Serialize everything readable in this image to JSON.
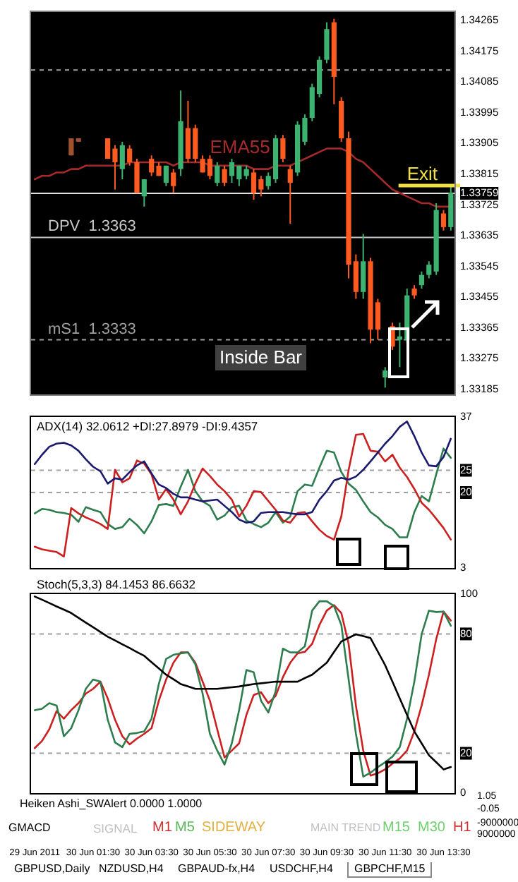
{
  "chart_data": [
    {
      "type": "candlestick",
      "ohlc": [
        null,
        null,
        null,
        null,
        null,
        [
          1.3392,
          1.3392,
          1.3387,
          1.3387
        ],
        [
          1.3392,
          1.3392,
          1.3391,
          1.3391
        ],
        null,
        null,
        null,
        [
          1.3392,
          1.3392,
          1.3386,
          1.3386
        ],
        [
          1.3389,
          1.339,
          1.3377,
          1.3385
        ],
        [
          1.3383,
          1.3391,
          1.338,
          1.339
        ],
        [
          1.3389,
          1.339,
          1.3384,
          1.3385
        ],
        [
          1.3385,
          1.3386,
          1.3376,
          1.3376
        ],
        [
          1.3375,
          1.338,
          1.3372,
          1.338
        ],
        [
          1.3386,
          1.3387,
          1.3381,
          1.3382
        ],
        [
          1.3384,
          1.3385,
          1.3381,
          1.3381
        ],
        [
          1.3379,
          1.3384,
          1.3378,
          1.3384
        ],
        [
          1.3382,
          1.3383,
          1.3376,
          1.3378
        ],
        [
          1.3383,
          1.3406,
          1.3381,
          1.3397
        ],
        [
          1.3395,
          1.3403,
          1.3385,
          1.3386
        ],
        [
          1.3395,
          1.3396,
          1.3385,
          1.3386
        ],
        [
          1.3386,
          1.3387,
          1.3382,
          1.3382
        ],
        [
          1.3386,
          1.3387,
          1.338,
          1.3381
        ],
        [
          1.3379,
          1.3385,
          1.3378,
          1.3384
        ],
        [
          1.3383,
          1.3384,
          1.3378,
          1.3379
        ],
        [
          1.3381,
          1.3386,
          1.3379,
          1.3385
        ],
        [
          1.338,
          1.3384,
          1.3378,
          1.3384
        ],
        [
          1.3381,
          1.3384,
          1.338,
          1.3383
        ],
        [
          1.3382,
          1.3383,
          1.3374,
          1.3376
        ],
        [
          1.338,
          1.3381,
          1.3375,
          1.3377
        ],
        [
          1.3378,
          1.3382,
          1.3377,
          1.3381
        ],
        [
          1.338,
          1.3393,
          1.3379,
          1.3392
        ],
        [
          1.3392,
          1.3393,
          1.3385,
          1.3386
        ],
        [
          1.3383,
          1.3384,
          1.3367,
          1.3379
        ],
        [
          1.3382,
          1.3397,
          1.3381,
          1.3396
        ],
        [
          1.3391,
          1.3399,
          1.339,
          1.3398
        ],
        [
          1.3398,
          1.3408,
          1.3397,
          1.3407
        ],
        [
          1.3405,
          1.3416,
          1.3404,
          1.3415
        ],
        [
          1.3415,
          1.3426,
          1.3414,
          1.3424
        ],
        [
          1.3426,
          1.3427,
          1.3402,
          1.341
        ],
        [
          1.3403,
          1.3404,
          1.3391,
          1.3392
        ],
        [
          1.3392,
          1.3394,
          1.3351,
          1.3355
        ],
        [
          1.3356,
          1.3358,
          1.3345,
          1.3347
        ],
        [
          1.3347,
          1.3364,
          1.3345,
          1.3356
        ],
        [
          1.3356,
          1.3357,
          1.3332,
          1.3336
        ],
        [
          1.3344,
          1.3345,
          1.3333,
          1.3336
        ],
        [
          1.3322,
          1.3325,
          1.3319,
          1.3324
        ],
        [
          1.3337,
          1.3338,
          1.333,
          1.3331
        ],
        [
          1.3333,
          1.3338,
          1.3325,
          1.3334
        ],
        [
          1.3333,
          1.3348,
          1.3332,
          1.3346
        ],
        [
          1.3348,
          1.3349,
          1.3345,
          1.3346
        ],
        [
          1.3349,
          1.3353,
          1.3348,
          1.3352
        ],
        [
          1.3352,
          1.3356,
          1.3351,
          1.3355
        ],
        [
          1.3353,
          1.3373,
          1.3352,
          1.3371
        ],
        [
          1.337,
          1.3371,
          1.3365,
          1.3366
        ],
        [
          1.3366,
          1.3378,
          1.3365,
          1.3376
        ]
      ],
      "colors": [
        null,
        null,
        null,
        null,
        null,
        "#a0522d",
        "#a0522d",
        null,
        null,
        null,
        "#ff5a1f",
        "#ff5a1f",
        "#3cb371",
        "#ff5a1f",
        "#ff5a1f",
        "#3cb371",
        "#ff5a1f",
        "#ff5a1f",
        "#3cb371",
        "#ff5a1f",
        "#3cb371",
        "#ff5a1f",
        "#ff5a1f",
        "#ff5a1f",
        "#ff5a1f",
        "#3cb371",
        "#ff5a1f",
        "#3cb371",
        "#3cb371",
        "#3cb371",
        "#ff5a1f",
        "#ff5a1f",
        "#3cb371",
        "#3cb371",
        "#ff5a1f",
        "#ff5a1f",
        "#3cb371",
        "#3cb371",
        "#3cb371",
        "#3cb371",
        "#3cb371",
        "#ff5a1f",
        "#ff5a1f",
        "#ff5a1f",
        "#ff5a1f",
        "#3cb371",
        "#ff5a1f",
        "#ff5a1f",
        "#3cb371",
        "#ff5a1f",
        "#3cb371",
        "#3cb371",
        "#ff5a1f",
        "#3cb371",
        "#3cb371",
        "#3cb371",
        "#ff5a1f",
        "#3cb371"
      ],
      "series": [
        {
          "type": "line",
          "name": "EMA55",
          "color": "#a52a2a",
          "values": [
            1.338,
            1.3381,
            1.3381,
            1.3382,
            1.3382,
            1.3383,
            1.3383,
            1.3384,
            1.3384,
            1.3384,
            1.3384,
            1.3384,
            1.3384,
            1.3385,
            1.3385,
            1.3385,
            1.3385,
            1.3385,
            1.3385,
            1.3384,
            1.3385,
            1.3385,
            1.3385,
            1.3385,
            1.3384,
            1.3384,
            1.3384,
            1.3384,
            1.3384,
            1.3384,
            1.3383,
            1.3383,
            1.3383,
            1.3384,
            1.3384,
            1.3384,
            1.3385,
            1.3386,
            1.3387,
            1.3388,
            1.3389,
            1.3389,
            1.3389,
            1.3388,
            1.3386,
            1.3385,
            1.3383,
            1.3381,
            1.3379,
            1.3377,
            1.3376,
            1.3375,
            1.3374,
            1.3373,
            1.3373,
            1.3372,
            1.3372,
            1.3372
          ]
        }
      ],
      "ylim": [
        1.3317,
        1.3429
      ],
      "yticks": [
        1.34265,
        1.34175,
        1.34085,
        1.33995,
        1.33905,
        1.33815,
        1.33759,
        1.33725,
        1.33635,
        1.33545,
        1.33455,
        1.33365,
        1.33275,
        1.33185
      ],
      "ref_lines": [
        {
          "axis": "y",
          "value": 1.3412,
          "color": "#a0a0a0",
          "line_style": "dashed"
        },
        {
          "axis": "y",
          "value": 1.33759,
          "color": "#e0e0e0"
        },
        {
          "axis": "y",
          "value": 1.3363,
          "label": "DPV  1.3363",
          "color": "#c8c8c8"
        },
        {
          "axis": "y",
          "value": 1.3333,
          "label": "mS1  1.3333",
          "color": "#a0a0a0",
          "line_style": "dashed"
        }
      ],
      "annotations": [
        "Exit",
        "Inside Bar"
      ],
      "tick_labels": "y"
    },
    {
      "type": "line",
      "title": "ADX(14) 32.0612 +DI:27.8979 -DI:9.4357",
      "series": [
        {
          "color": "#1a1a6e",
          "values": [
            26.4,
            28.5,
            30.3,
            31.0,
            31.2,
            30.6,
            29.4,
            27.5,
            25.8,
            24.8,
            22.0,
            23.2,
            22.9,
            24.6,
            26.1,
            27.0,
            24.3,
            21.8,
            21.0,
            19.7,
            18.9,
            18.9,
            18.4,
            18.0,
            18.2,
            18.4,
            17.0,
            15.6,
            13.9,
            13.2,
            13.5,
            15.4,
            15.6,
            15.6,
            15.6,
            15.3,
            15.1,
            15.1,
            15.6,
            18.4,
            20.3,
            22.7,
            23.3,
            22.9,
            23.6,
            25.1,
            27.0,
            29.0,
            31.0,
            32.7,
            34.8,
            36.0,
            32.7,
            29.0,
            26.1,
            25.9,
            28.0,
            32.1
          ]
        },
        {
          "color": "#cc2020",
          "values": [
            7.8,
            7.2,
            6.9,
            6.6,
            5.6,
            16.5,
            15.3,
            14.4,
            13.7,
            12.9,
            11.8,
            25.1,
            22.3,
            23.2,
            27.2,
            26.5,
            24.1,
            18.4,
            20.8,
            18.4,
            15.1,
            18.0,
            22.0,
            25.4,
            23.7,
            21.8,
            20.3,
            18.4,
            14.6,
            17.0,
            20.3,
            20.1,
            18.1,
            16.1,
            13.7,
            13.2,
            15.4,
            15.6,
            13.5,
            11.6,
            10.2,
            9.4,
            14.6,
            25.1,
            33.0,
            33.2,
            29.4,
            29.2,
            27.0,
            28.5,
            25.6,
            23.5,
            20.8,
            17.7,
            16.1,
            14.1,
            12.0,
            9.4
          ]
        },
        {
          "color": "#2e7d4f",
          "values": [
            15.3,
            16.3,
            16.1,
            15.6,
            15.4,
            15.0,
            13.4,
            16.7,
            16.1,
            15.6,
            12.9,
            11.8,
            12.2,
            14.1,
            12.7,
            10.8,
            13.5,
            17.2,
            17.4,
            17.0,
            21.3,
            25.1,
            20.3,
            18.0,
            17.0,
            13.9,
            14.8,
            16.7,
            17.0,
            13.7,
            12.9,
            12.2,
            13.2,
            15.6,
            13.2,
            14.6,
            20.3,
            21.8,
            21.5,
            25.6,
            29.4,
            29.0,
            24.6,
            22.0,
            20.6,
            18.0,
            15.6,
            14.4,
            12.7,
            11.8,
            9.9,
            9.9,
            15.6,
            19.2,
            18.0,
            24.1,
            29.9,
            27.8
          ]
        }
      ],
      "ylim": [
        3,
        37
      ],
      "yticks": [
        3,
        20,
        25,
        37
      ],
      "ref_lines": [
        {
          "axis": "y",
          "value": 25,
          "color": "#a0a0a0",
          "line_style": "dashed"
        },
        {
          "axis": "y",
          "value": 20,
          "color": "#a0a0a0",
          "line_style": "dashed"
        }
      ],
      "tick_labels": "y"
    },
    {
      "type": "line",
      "title": "Stoch(5,3,3) 84.1453 86.6632",
      "categories": [
        "29 Jun 2011",
        null,
        null,
        null,
        null,
        null,
        null,
        null,
        "30 Jun 01:30",
        null,
        null,
        null,
        null,
        null,
        null,
        null,
        "30 Jun 03:30",
        null,
        null,
        null,
        null,
        null,
        null,
        null,
        "30 Jun 05:30",
        null,
        null,
        null,
        null,
        null,
        null,
        null,
        "30 Jun 07:30",
        null,
        null,
        null,
        null,
        null,
        null,
        null,
        "30 Jun 09:30",
        null,
        null,
        null,
        null,
        null,
        null,
        null,
        "30 Jun 11:30",
        null,
        null,
        null,
        null,
        null,
        null,
        null,
        "30 Jun 13:30",
        null
      ],
      "series": [
        {
          "color": "#000000",
          "values": [
            98.8,
            97.2,
            95.5,
            93.8,
            92.2,
            90.5,
            88.1,
            85.7,
            83.4,
            81.0,
            78.6,
            76.7,
            74.8,
            72.9,
            70.9,
            69.0,
            65.8,
            62.7,
            59.5,
            57.2,
            54.8,
            53.6,
            52.4,
            52.4,
            52.4,
            52.4,
            52.8,
            53.2,
            53.6,
            54.2,
            54.8,
            55.2,
            55.6,
            56.0,
            56.0,
            56.0,
            56.0,
            57.8,
            59.5,
            62.5,
            65.5,
            70.9,
            76.2,
            78.0,
            79.8,
            78.9,
            77.9,
            71.1,
            64.3,
            56.0,
            47.6,
            39.3,
            31.0,
            25.0,
            19.0,
            15.5,
            11.9,
            13.1
          ]
        },
        {
          "color": "#2e7d4f",
          "values": [
            41.7,
            42.4,
            45.2,
            44.0,
            28.6,
            32.6,
            41.7,
            52.4,
            57.1,
            56.0,
            36.9,
            25.5,
            23.1,
            29.8,
            30.2,
            31.0,
            37.4,
            54.8,
            67.4,
            69.5,
            70.2,
            70.7,
            64.8,
            50.0,
            29.8,
            21.4,
            14.3,
            25.0,
            41.7,
            61.9,
            60.7,
            46.4,
            40.5,
            51.2,
            72.6,
            70.7,
            70.7,
            73.8,
            91.7,
            96.4,
            96.4,
            94.0,
            84.5,
            57.1,
            29.8,
            8.3,
            10.2,
            13.1,
            15.5,
            18.3,
            23.1,
            37.4,
            56.0,
            79.8,
            91.7,
            91.0,
            91.2,
            84.1
          ]
        },
        {
          "color": "#cc2020",
          "values": [
            22.6,
            26.2,
            32.1,
            41.2,
            37.4,
            41.7,
            45.2,
            50.0,
            52.4,
            56.0,
            47.6,
            36.9,
            28.6,
            24.5,
            27.4,
            29.8,
            32.6,
            46.4,
            57.1,
            65.5,
            70.7,
            70.7,
            65.5,
            56.0,
            46.4,
            32.1,
            17.9,
            21.4,
            25.0,
            39.3,
            49.3,
            50.7,
            45.2,
            48.8,
            58.3,
            65.5,
            70.2,
            71.0,
            75.0,
            84.5,
            91.7,
            94.5,
            90.5,
            75.0,
            44.0,
            21.4,
            8.8,
            10.0,
            11.9,
            14.8,
            17.4,
            21.4,
            31.0,
            44.0,
            59.5,
            77.4,
            91.2,
            86.7
          ]
        }
      ],
      "ylim": [
        0,
        100
      ],
      "yticks": [
        0,
        20,
        80,
        100
      ],
      "ref_lines": [
        {
          "axis": "y",
          "value": 80,
          "color": "#a0a0a0",
          "line_style": "dashed"
        },
        {
          "axis": "y",
          "value": 20,
          "color": "#a0a0a0",
          "line_style": "dashed"
        }
      ]
    },
    {
      "type": "other",
      "annotations": [
        "Heiken Ashi_SWAlert 0.0000 1.0000",
        "1.05",
        "-0.05",
        "GMACD",
        "SIGNAL",
        "M1",
        "M5",
        "SIDEWAY",
        "MAIN TREND",
        "M15",
        "M30",
        "H1",
        "-9000000",
        "9000000",
        "GBPUSD,Daily",
        "NZDUSD,H4",
        "GBPAUD-fx,H4",
        "USDCHF,H4",
        "GBPCHF,M15"
      ]
    }
  ]
}
